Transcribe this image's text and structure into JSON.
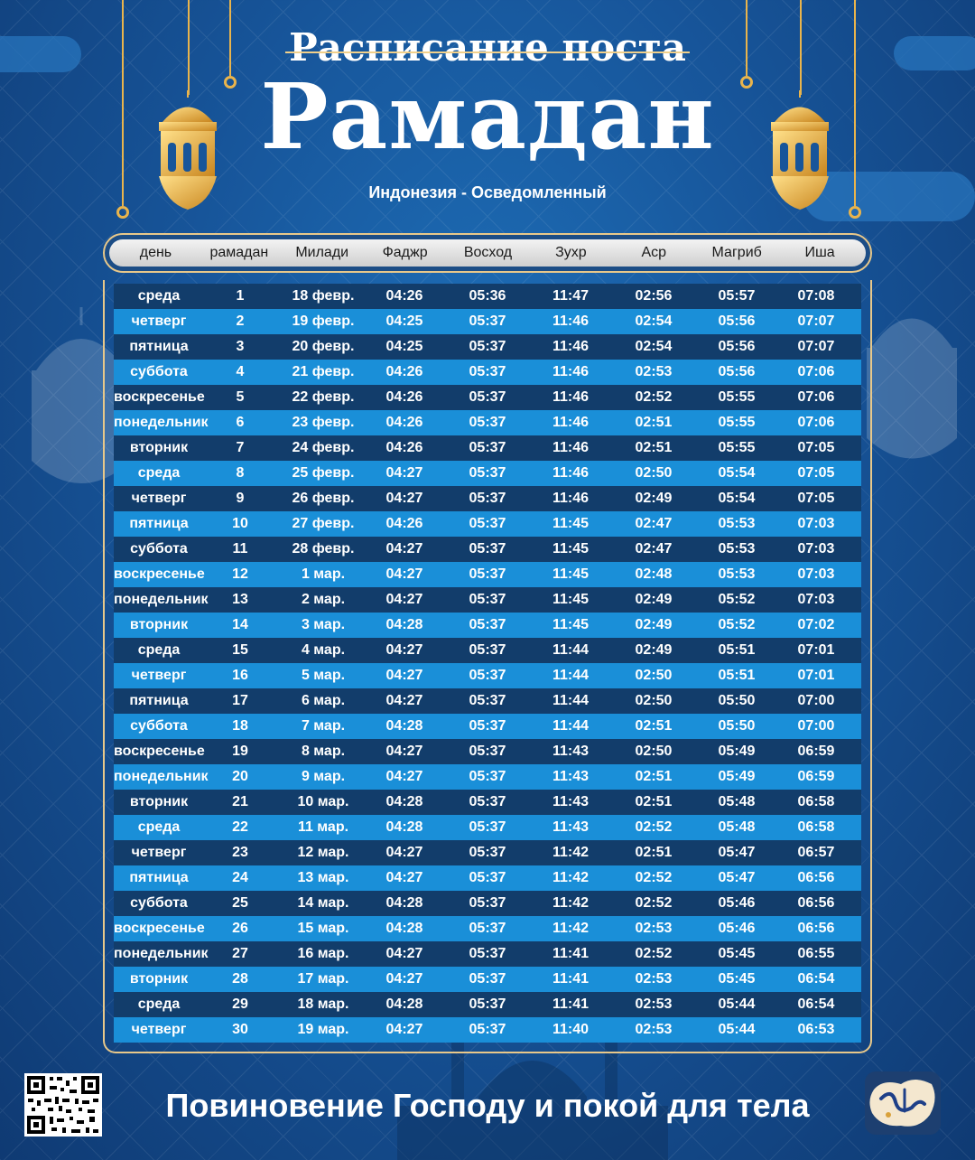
{
  "header": {
    "subtitle": "Расписание поста",
    "title": "Рамадан",
    "location": "Индонезия - Осведомленный"
  },
  "columns": [
    "день",
    "рамадан",
    "Милади",
    "Фаджр",
    "Восход",
    "Зухр",
    "Аср",
    "Магриб",
    "Иша"
  ],
  "rows": [
    [
      "среда",
      "1",
      "18 февр.",
      "04:26",
      "05:36",
      "11:47",
      "02:56",
      "05:57",
      "07:08"
    ],
    [
      "четверг",
      "2",
      "19 февр.",
      "04:25",
      "05:37",
      "11:46",
      "02:54",
      "05:56",
      "07:07"
    ],
    [
      "пятница",
      "3",
      "20 февр.",
      "04:25",
      "05:37",
      "11:46",
      "02:54",
      "05:56",
      "07:07"
    ],
    [
      "суббота",
      "4",
      "21 февр.",
      "04:26",
      "05:37",
      "11:46",
      "02:53",
      "05:56",
      "07:06"
    ],
    [
      "воскресенье",
      "5",
      "22 февр.",
      "04:26",
      "05:37",
      "11:46",
      "02:52",
      "05:55",
      "07:06"
    ],
    [
      "понедельник",
      "6",
      "23 февр.",
      "04:26",
      "05:37",
      "11:46",
      "02:51",
      "05:55",
      "07:06"
    ],
    [
      "вторник",
      "7",
      "24 февр.",
      "04:26",
      "05:37",
      "11:46",
      "02:51",
      "05:55",
      "07:05"
    ],
    [
      "среда",
      "8",
      "25 февр.",
      "04:27",
      "05:37",
      "11:46",
      "02:50",
      "05:54",
      "07:05"
    ],
    [
      "четверг",
      "9",
      "26 февр.",
      "04:27",
      "05:37",
      "11:46",
      "02:49",
      "05:54",
      "07:05"
    ],
    [
      "пятница",
      "10",
      "27 февр.",
      "04:26",
      "05:37",
      "11:45",
      "02:47",
      "05:53",
      "07:03"
    ],
    [
      "суббота",
      "11",
      "28 февр.",
      "04:27",
      "05:37",
      "11:45",
      "02:47",
      "05:53",
      "07:03"
    ],
    [
      "воскресенье",
      "12",
      "1 мар.",
      "04:27",
      "05:37",
      "11:45",
      "02:48",
      "05:53",
      "07:03"
    ],
    [
      "понедельник",
      "13",
      "2 мар.",
      "04:27",
      "05:37",
      "11:45",
      "02:49",
      "05:52",
      "07:03"
    ],
    [
      "вторник",
      "14",
      "3 мар.",
      "04:28",
      "05:37",
      "11:45",
      "02:49",
      "05:52",
      "07:02"
    ],
    [
      "среда",
      "15",
      "4 мар.",
      "04:27",
      "05:37",
      "11:44",
      "02:49",
      "05:51",
      "07:01"
    ],
    [
      "четверг",
      "16",
      "5 мар.",
      "04:27",
      "05:37",
      "11:44",
      "02:50",
      "05:51",
      "07:01"
    ],
    [
      "пятница",
      "17",
      "6 мар.",
      "04:27",
      "05:37",
      "11:44",
      "02:50",
      "05:50",
      "07:00"
    ],
    [
      "суббота",
      "18",
      "7 мар.",
      "04:28",
      "05:37",
      "11:44",
      "02:51",
      "05:50",
      "07:00"
    ],
    [
      "воскресенье",
      "19",
      "8 мар.",
      "04:27",
      "05:37",
      "11:43",
      "02:50",
      "05:49",
      "06:59"
    ],
    [
      "понедельник",
      "20",
      "9 мар.",
      "04:27",
      "05:37",
      "11:43",
      "02:51",
      "05:49",
      "06:59"
    ],
    [
      "вторник",
      "21",
      "10 мар.",
      "04:28",
      "05:37",
      "11:43",
      "02:51",
      "05:48",
      "06:58"
    ],
    [
      "среда",
      "22",
      "11 мар.",
      "04:28",
      "05:37",
      "11:43",
      "02:52",
      "05:48",
      "06:58"
    ],
    [
      "четверг",
      "23",
      "12 мар.",
      "04:27",
      "05:37",
      "11:42",
      "02:51",
      "05:47",
      "06:57"
    ],
    [
      "пятница",
      "24",
      "13 мар.",
      "04:27",
      "05:37",
      "11:42",
      "02:52",
      "05:47",
      "06:56"
    ],
    [
      "суббота",
      "25",
      "14 мар.",
      "04:28",
      "05:37",
      "11:42",
      "02:52",
      "05:46",
      "06:56"
    ],
    [
      "воскресенье",
      "26",
      "15 мар.",
      "04:28",
      "05:37",
      "11:42",
      "02:53",
      "05:46",
      "06:56"
    ],
    [
      "понедельник",
      "27",
      "16 мар.",
      "04:27",
      "05:37",
      "11:41",
      "02:52",
      "05:45",
      "06:55"
    ],
    [
      "вторник",
      "28",
      "17 мар.",
      "04:27",
      "05:37",
      "11:41",
      "02:53",
      "05:45",
      "06:54"
    ],
    [
      "среда",
      "29",
      "18 мар.",
      "04:28",
      "05:37",
      "11:41",
      "02:53",
      "05:44",
      "06:54"
    ],
    [
      "четверг",
      "30",
      "19 мар.",
      "04:27",
      "05:37",
      "11:40",
      "02:53",
      "05:44",
      "06:53"
    ]
  ],
  "footer": {
    "slogan": "Повиновение Господу и покой для тела"
  },
  "icons": {
    "qr": "qr-code-icon",
    "logo": "app-logo-icon",
    "lantern": "lantern-icon"
  },
  "colors": {
    "background": "#17559a",
    "row_dark": "#123d6b",
    "row_light": "#1a8fd8",
    "gold": "#e9b44c"
  }
}
